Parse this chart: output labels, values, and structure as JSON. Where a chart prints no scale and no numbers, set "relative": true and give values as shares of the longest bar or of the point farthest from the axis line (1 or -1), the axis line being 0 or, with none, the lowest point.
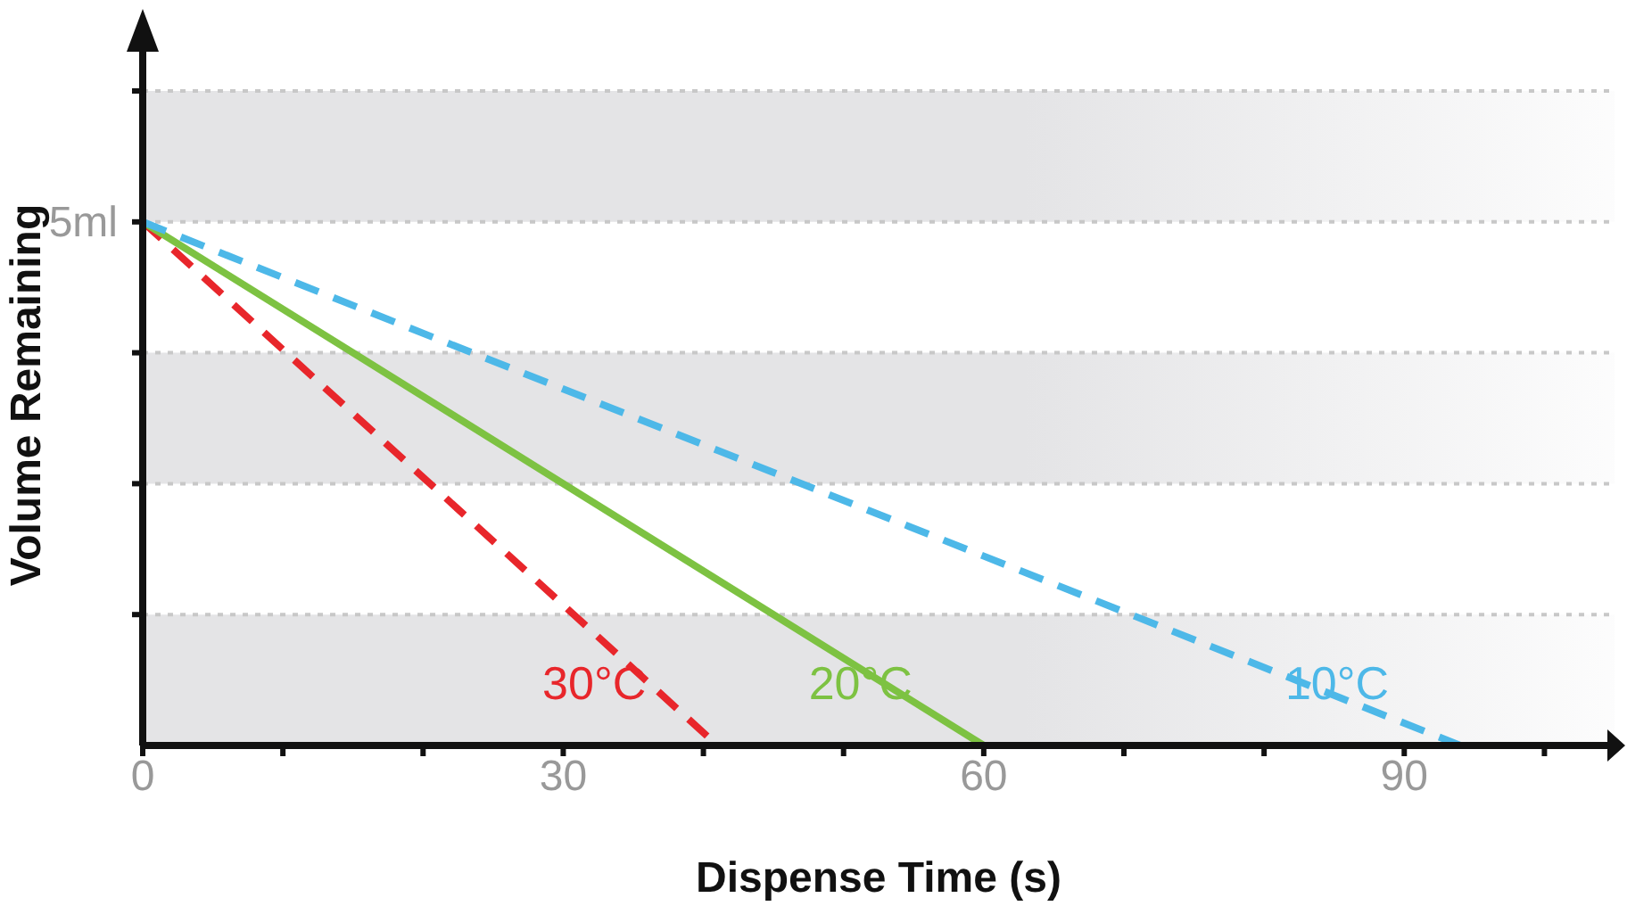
{
  "chart_data": {
    "type": "line",
    "xlabel": "Dispense Time (s)",
    "ylabel": "Volume Remaining",
    "relative": true,
    "series": [
      {
        "name": "30°C",
        "color": "#e8262b",
        "line_style": "dashed",
        "x": [
          0,
          41
        ],
        "values": [
          1,
          0
        ]
      },
      {
        "name": "20°C",
        "color": "#7dc242",
        "line_style": "solid",
        "x": [
          0,
          60
        ],
        "values": [
          1,
          0
        ]
      },
      {
        "name": "10°C",
        "color": "#4db8e8",
        "line_style": "dashed",
        "x": [
          0,
          94
        ],
        "values": [
          1,
          0
        ]
      }
    ],
    "xlim": [
      0,
      105
    ],
    "xticks": [
      0,
      {
        "value": 10,
        "label": null
      },
      {
        "value": 20,
        "label": null
      },
      30,
      {
        "value": 40,
        "label": null
      },
      {
        "value": 50,
        "label": null
      },
      60,
      {
        "value": 70,
        "label": null
      },
      {
        "value": 80,
        "label": null
      },
      90,
      {
        "value": 100,
        "label": null
      }
    ],
    "annotations": [
      {
        "text": "5ml",
        "x": 0,
        "y": 1
      }
    ],
    "bands": [
      {
        "axis": "y",
        "from": 0,
        "to": 0.25,
        "color": "#e4e4e6"
      },
      {
        "axis": "y",
        "from": 0.5,
        "to": 0.75,
        "color": "#e4e4e6"
      },
      {
        "axis": "y",
        "from": 1,
        "to": 1.25,
        "color": "#e4e4e6"
      }
    ],
    "grid": "y",
    "marker": "none"
  }
}
